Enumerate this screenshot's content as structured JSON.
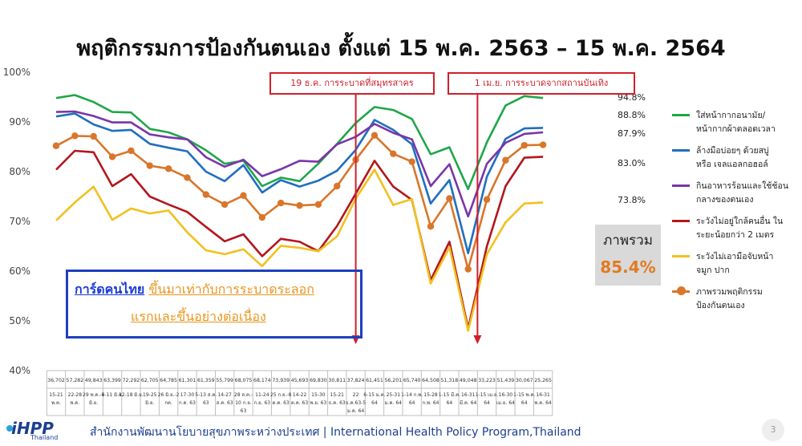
{
  "title": "พฤติกรรมการป้องกันตนเอง ตั้งแต่ 15 พ.ค. 2563 – 15 พ.ค. 2564",
  "chart_data": {
    "type": "line",
    "title": "พฤติกรรมการป้องกันตนเอง ตั้งแต่ 15 พ.ค. 2563 – 15 พ.ค. 2564",
    "ylim": [
      40,
      100
    ],
    "yticks": [
      "40%",
      "50%",
      "60%",
      "70%",
      "80%",
      "90%",
      "100%"
    ],
    "ytick_values": [
      40,
      50,
      60,
      70,
      80,
      90,
      100
    ],
    "grid": false,
    "legend_position": "right",
    "sample_sizes": [
      "36,702",
      "57,282",
      "49,843",
      "63,399",
      "72,292",
      "62,705",
      "64,785",
      "61,301",
      "61,359",
      "55,799",
      "68,075",
      "68,174",
      "73,939",
      "45,693",
      "69,830",
      "30,811",
      "37,824",
      "61,451",
      "56,201",
      "65,740",
      "64,508",
      "51,318",
      "49,048",
      "33,223",
      "51,439",
      "30,067",
      "25,265"
    ],
    "categories": [
      [
        "15-21",
        "พ.ค."
      ],
      [
        "22-28",
        "พ.ค."
      ],
      [
        "29 พ.ค.-4",
        "มิ.ย."
      ],
      [
        "5-11 มิ.ย."
      ],
      [
        "12-18 มิ.ย."
      ],
      [
        "19-25",
        "มิ.ย."
      ],
      [
        "26 มิ.ย.-2",
        "กค."
      ],
      [
        "17-30",
        "ก.ค. 63"
      ],
      [
        "5-13 ส.ค.",
        "63"
      ],
      [
        "14-27",
        "ส.ค. 63"
      ],
      [
        "28 ส.ค.-",
        "10 ก.ย.",
        "63"
      ],
      [
        "11-24",
        "ก.ย. 63"
      ],
      [
        "25 ก.ย.-8",
        "ต.ค. 63"
      ],
      [
        "14-22",
        "ต.ค. 63"
      ],
      [
        "15-30",
        "พ.ย. 63"
      ],
      [
        "15-21",
        "ธ.ค. 63"
      ],
      [
        "22",
        "ธ.ค.63-5",
        "ม.ค. 64"
      ],
      [
        "6-15 ม.ค.",
        "64"
      ],
      [
        "25-31",
        "ม.ค. 64"
      ],
      [
        "1-14 ก.พ.",
        "64"
      ],
      [
        "15-28",
        "ก.พ. 64"
      ],
      [
        "1-15 มี.ค.",
        "64"
      ],
      [
        "16-31",
        "มี.ค. 64"
      ],
      [
        "1-15 เม.ย.",
        "64"
      ],
      [
        "16-30",
        "เม.ย. 64"
      ],
      [
        "1-15 พ.ค.",
        "64"
      ],
      [
        "16-31",
        "พ.ค. 64"
      ]
    ],
    "series": [
      {
        "name": "ใส่หน้ากากอนามัย/หน้ากากผ้าตลอดเวลา",
        "color": "#1fa64a",
        "marker": false,
        "values": [
          94.8,
          95.4,
          94,
          92,
          91.9,
          88.6,
          87.9,
          86.5,
          84.3,
          81.6,
          82.2,
          77.1,
          78.8,
          78.1,
          81.6,
          85.6,
          89.8,
          93,
          92.4,
          90.6,
          83.5,
          84.9,
          76.5,
          85.9,
          93.3,
          95.2,
          94.8
        ]
      },
      {
        "name": "ล้างมือบ่อยๆ ด้วยสบู่หรือ เจลแอลกอฮอล์",
        "color": "#1f6fbf",
        "marker": false,
        "values": [
          91.1,
          91.7,
          89.5,
          88.2,
          88.4,
          85.6,
          84.8,
          84.1,
          80,
          78.1,
          81.3,
          75.8,
          78.3,
          77,
          78.2,
          80.2,
          84.4,
          90.4,
          88.4,
          85.5,
          73.6,
          78.3,
          63.6,
          79,
          86.6,
          88.7,
          88.8
        ]
      },
      {
        "name": "กินอาหารร้อนและใช้ช้อนกลางของตนเอง",
        "color": "#7a35a8",
        "marker": false,
        "values": [
          92,
          92.1,
          91.2,
          89.9,
          89.9,
          87.5,
          86.9,
          86.5,
          82.9,
          81,
          82.4,
          79.1,
          80.5,
          82.2,
          82,
          85.5,
          87,
          89.6,
          87.8,
          86.5,
          77.1,
          81.5,
          71,
          81.6,
          85.8,
          87.6,
          87.9
        ]
      },
      {
        "name": "ระวังไม่อยู่ใกล้คนอื่น ในระยะน้อยกว่า 2 เมตร",
        "color": "#b3161d",
        "marker": false,
        "values": [
          80.4,
          84.2,
          83.9,
          77.1,
          79.5,
          75,
          73.4,
          71.9,
          68.9,
          66,
          67.4,
          63,
          66.5,
          65.9,
          64,
          69.1,
          75.6,
          82.2,
          77,
          74.3,
          58.2,
          65.9,
          48.5,
          65,
          77.1,
          82.8,
          83
        ]
      },
      {
        "name": "ระวังไม่เอามือจับหน้าจมูก ปาก",
        "color": "#f2c01e",
        "marker": false,
        "values": [
          70.2,
          73.8,
          77,
          70.3,
          72.6,
          71.6,
          72.2,
          67.8,
          64.2,
          63.4,
          64.4,
          61,
          65.1,
          64.7,
          64,
          67,
          74.6,
          80.4,
          73.3,
          74.5,
          57.5,
          64.8,
          48,
          63.4,
          69.8,
          73.6,
          73.8
        ]
      },
      {
        "name": "ภาพรวมพฤติกรรมป้องกันตนเอง",
        "color": "#d9762a",
        "marker": true,
        "values": [
          85.2,
          87.2,
          87.1,
          83,
          84.2,
          81.2,
          80.6,
          78.8,
          75.4,
          73.4,
          75.2,
          70.8,
          73.7,
          73.2,
          73.4,
          77.1,
          82.4,
          87.3,
          83.6,
          82,
          69,
          74.6,
          60.4,
          74.4,
          82.3,
          85.3,
          85.4
        ]
      }
    ],
    "end_labels": [
      "94.8%",
      "88.8%",
      "87.9%",
      "83.0%",
      "73.8%"
    ],
    "end_label_series": [
      0,
      1,
      2,
      3,
      4
    ],
    "event_lines": [
      {
        "label": "19 ธ.ค. การระบาดที่สมุทรสาคร",
        "index": 16
      },
      {
        "label": "1 เม.ย. การระบาดจากสถานบันเทิง",
        "index": 22.5
      }
    ],
    "overall": {
      "label": "ภาพรวม",
      "value": "85.4%"
    }
  },
  "annotation": {
    "blue_text": "การ์ดคนไทย",
    "orange_text_1": "ขึ้นมาเท่ากับการระบาดระลอก",
    "orange_text_2": "แรกและขึ้นอย่างต่อเนื่อง"
  },
  "legend": [
    {
      "line1": "ใส่หน้ากากอนามัย/",
      "line2": "หน้ากากผ้าตลอดเวลา",
      "color": "#1fa64a",
      "marker": false
    },
    {
      "line1": "ล้างมือบ่อยๆ ด้วยสบู่",
      "line2": "หรือ เจลแอลกอฮอล์",
      "color": "#1f6fbf",
      "marker": false
    },
    {
      "line1": "กินอาหารร้อนและใช้ช้อน",
      "line2": "กลางของตนเอง",
      "color": "#7a35a8",
      "marker": false
    },
    {
      "line1": "ระวังไม่อยู่ใกล้คนอื่น ใน",
      "line2": "ระยะน้อยกว่า 2 เมตร",
      "color": "#b3161d",
      "marker": false
    },
    {
      "line1": "ระวังไม่เอามือจับหน้า",
      "line2": "จมูก ปาก",
      "color": "#f2c01e",
      "marker": false
    },
    {
      "line1": "ภาพรวมพฤติกรรม",
      "line2": "ป้องกันตนเอง",
      "color": "#d9762a",
      "marker": true
    }
  ],
  "footer": {
    "logo_main": "iHPP",
    "logo_sub": "Thailand",
    "org": "สำนักงานพัฒนานโยบายสุขภาพระหว่างประเทศ  |  International Health Policy Program,Thailand",
    "page": "3"
  }
}
